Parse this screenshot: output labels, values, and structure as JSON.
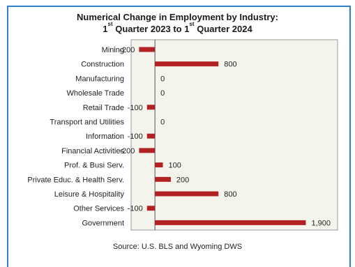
{
  "chart_data": {
    "type": "bar",
    "orientation": "horizontal",
    "title_line1": "Numerical Change in Employment by Industry:",
    "title_line2_parts": [
      "1",
      "st",
      " Quarter 2023 to 1",
      "st",
      " Quarter 2024"
    ],
    "source": "Source: U.S. BLS and Wyoming DWS",
    "categories": [
      "Mining",
      "Construction",
      "Manufacturing",
      "Wholesale Trade",
      "Retail Trade",
      "Transport and Utilities",
      "Information",
      "Financial Activities",
      "Prof. & Busi Serv.",
      "Private Educ. & Health Serv.",
      "Leisure & Hospitality",
      "Other Services",
      "Government"
    ],
    "values": [
      -200,
      800,
      0,
      0,
      -100,
      0,
      -100,
      -200,
      100,
      200,
      800,
      -100,
      1900
    ],
    "value_labels": [
      "-200",
      "800",
      "0",
      "0",
      "-100",
      "0",
      "-100",
      "-200",
      "100",
      "200",
      "800",
      "-100",
      "1,900"
    ],
    "xlim": [
      -300,
      2300
    ],
    "bar_color": "#b22222",
    "plot_background": "#f4f4ec",
    "gridlines": false,
    "legend": "none"
  }
}
